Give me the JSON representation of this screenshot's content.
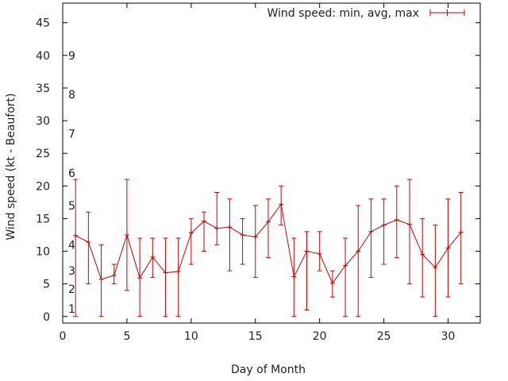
{
  "chart_data": {
    "type": "line",
    "xlabel": "Day of Month",
    "ylabel": "Wind speed (kt - Beaufort)",
    "xlim": [
      0,
      32.5
    ],
    "ylim": [
      -1,
      48
    ],
    "x_ticks": [
      0,
      5,
      10,
      15,
      20,
      25,
      30
    ],
    "y_ticks": [
      0,
      5,
      10,
      15,
      20,
      25,
      30,
      35,
      40,
      45
    ],
    "beaufort_labels": [
      {
        "label": "1",
        "y": 1.2
      },
      {
        "label": "2",
        "y": 4.2
      },
      {
        "label": "3",
        "y": 7.0
      },
      {
        "label": "4",
        "y": 11.0
      },
      {
        "label": "5",
        "y": 17.0
      },
      {
        "label": "6",
        "y": 22.0
      },
      {
        "label": "7",
        "y": 28.0
      },
      {
        "label": "8",
        "y": 34.0
      },
      {
        "label": "9",
        "y": 40.0
      }
    ],
    "legend": "Wind speed: min, avg, max",
    "series": [
      {
        "name": "Wind speed: min, avg, max",
        "color": "#cc0000",
        "x": [
          1,
          2,
          3,
          4,
          5,
          6,
          7,
          8,
          9,
          10,
          11,
          12,
          13,
          14,
          15,
          16,
          17,
          18,
          19,
          20,
          21,
          22,
          23,
          24,
          25,
          26,
          27,
          28,
          29,
          30,
          31
        ],
        "avg": [
          12.4,
          11.4,
          5.7,
          6.3,
          12.5,
          5.9,
          9.1,
          6.7,
          6.9,
          12.8,
          14.6,
          13.5,
          13.7,
          12.5,
          12.2,
          14.5,
          17.2,
          6.1,
          10.0,
          9.6,
          5.1,
          7.8,
          10.0,
          13.0,
          14.0,
          14.8,
          14.1,
          9.5,
          7.5,
          10.5,
          12.9
        ],
        "min": [
          0,
          5,
          0,
          5,
          4,
          0,
          6,
          0,
          0,
          8,
          10,
          11,
          7,
          8,
          6,
          9,
          14,
          0,
          1,
          7,
          3,
          0,
          0,
          6,
          8,
          9,
          5,
          3,
          0,
          3,
          5
        ],
        "max": [
          21,
          16,
          11,
          8,
          21,
          12,
          12,
          12,
          12,
          15,
          16,
          19,
          18,
          15,
          17,
          18,
          20,
          12,
          13,
          13,
          7,
          12,
          17,
          18,
          18,
          20,
          21,
          15,
          14,
          18,
          19
        ]
      }
    ]
  }
}
